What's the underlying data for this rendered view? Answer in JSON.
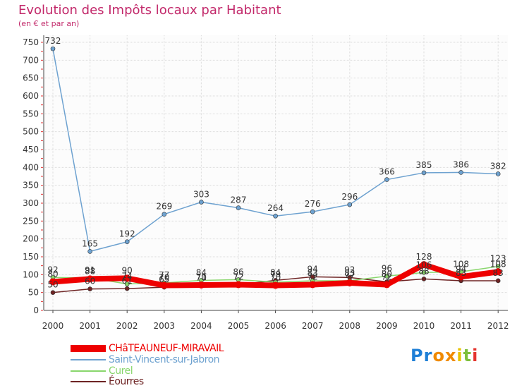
{
  "chart_data": {
    "type": "line",
    "title": "Evolution des Impôts locaux par Habitant",
    "subtitle": "(en € et par an)",
    "x": [
      "2000",
      "2001",
      "2002",
      "2003",
      "2004",
      "2005",
      "2006",
      "2007",
      "2008",
      "2009",
      "2010",
      "2011",
      "2012"
    ],
    "ylim": [
      0,
      750
    ],
    "yticks": [
      0,
      50,
      100,
      150,
      200,
      250,
      300,
      350,
      400,
      450,
      500,
      550,
      600,
      650,
      700,
      750
    ],
    "grid": true,
    "legend_position": "bottom-left",
    "series": [
      {
        "name": "CHâTEAUNEUF-MIRAVAIL",
        "color": "#ee0000",
        "values": [
          80,
          88,
          90,
          70,
          71,
          72,
          70,
          72,
          77,
          72,
          128,
          94,
          108
        ]
      },
      {
        "name": "Saint-Vincent-sur-Jabron",
        "color": "#6ea2d0",
        "values": [
          732,
          165,
          192,
          269,
          303,
          287,
          264,
          276,
          296,
          366,
          385,
          386,
          382
        ]
      },
      {
        "name": "Curel",
        "color": "#88d66c",
        "values": [
          92,
          91,
          74,
          77,
          84,
          86,
          79,
          83,
          83,
          96,
          106,
          108,
          123
        ]
      },
      {
        "name": "Éourres",
        "color": "#6e2424",
        "values": [
          50,
          60,
          61,
          65,
          70,
          72,
          84,
          94,
          92,
          80,
          88,
          83,
          83
        ]
      }
    ]
  },
  "logo": {
    "text": "Proxiti",
    "letters": [
      "P",
      "r",
      "o",
      "x",
      "i",
      "t",
      "i"
    ],
    "colors": [
      "#1e7fd6",
      "#1e7fd6",
      "#f08a00",
      "#f08a00",
      "#e8c200",
      "#7cbf3c",
      "#e4342e"
    ]
  }
}
